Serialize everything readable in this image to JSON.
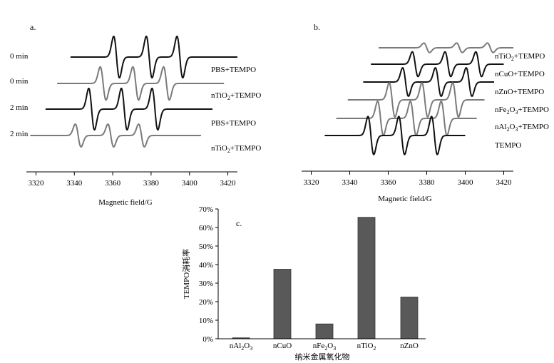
{
  "colors": {
    "dark": "#111111",
    "gray": "#7a7a7a",
    "bar": "#595959"
  },
  "chart_data": [
    {
      "type": "line",
      "panel_label": "a.",
      "xlabel": "Magnetic field/G",
      "x_ticks": [
        3320,
        3340,
        3360,
        3380,
        3400,
        3420
      ],
      "xlim": [
        3315,
        3425
      ],
      "series": [
        {
          "time": "0 min",
          "name": "PBS+TEMPO",
          "color": "dark",
          "start": 3338,
          "end": 3425,
          "peaks": [
            3362,
            3379,
            3395
          ],
          "amp": 1.0
        },
        {
          "time": "0 min",
          "name": "nTiO2+TEMPO",
          "name_main": "nTiO",
          "name_sub": "2",
          "name_tail": "+TEMPO",
          "color": "gray",
          "start": 3331,
          "end": 3418,
          "peaks": [
            3355,
            3372,
            3388
          ],
          "amp": 0.8
        },
        {
          "time": "2 min",
          "name": "PBS+TEMPO",
          "color": "dark",
          "start": 3325,
          "end": 3412,
          "peaks": [
            3349,
            3366,
            3382
          ],
          "amp": 1.0
        },
        {
          "time": "2 min",
          "name": "nTiO2+TEMPO",
          "name_main": "nTiO",
          "name_sub": "2",
          "name_tail": "+TEMPO",
          "color": "gray",
          "start": 3317,
          "end": 3406,
          "peaks": [
            3342,
            3359,
            3375
          ],
          "amp": 0.55
        }
      ]
    },
    {
      "type": "line",
      "panel_label": "b.",
      "xlabel": "Magnetic field/G",
      "x_ticks": [
        3320,
        3340,
        3360,
        3380,
        3400,
        3420
      ],
      "xlim": [
        3315,
        3425
      ],
      "series": [
        {
          "name": "nTiO2+TEMPO",
          "name_main": "nTiO",
          "name_sub": "2",
          "name_tail": "+TEMPO",
          "color": "gray",
          "start": 3355,
          "end": 3425,
          "peaks": [
            3380,
            3397,
            3413
          ],
          "amp": 0.25
        },
        {
          "name": "nCuO+TEMPO",
          "color": "dark",
          "start": 3351,
          "end": 3420,
          "peaks": [
            3374,
            3391,
            3407
          ],
          "amp": 0.65
        },
        {
          "name": "nZnO+TEMPO",
          "color": "dark",
          "start": 3347,
          "end": 3415,
          "peaks": [
            3369,
            3386,
            3402
          ],
          "amp": 0.75
        },
        {
          "name": "nFe2O3+TEMPO",
          "name_main": "nFe",
          "name_sub": "2",
          "name_mid": "O",
          "name_sub2": "3",
          "name_tail": "+TEMPO",
          "color": "gray",
          "start": 3339,
          "end": 3410,
          "peaks": [
            3362,
            3379,
            3395
          ],
          "amp": 0.9
        },
        {
          "name": "nAl2O3+TEMPO",
          "name_main": "nAl",
          "name_sub": "2",
          "name_mid": "O",
          "name_sub2": "3",
          "name_tail": "+TEMPO",
          "color": "gray",
          "start": 3333,
          "end": 3406,
          "peaks": [
            3356,
            3373,
            3389
          ],
          "amp": 0.9
        },
        {
          "name": "TEMPO",
          "color": "dark",
          "start": 3327,
          "end": 3400,
          "peaks": [
            3351,
            3367,
            3384
          ],
          "amp": 1.0
        }
      ]
    },
    {
      "type": "bar",
      "panel_label": "c.",
      "xlabel": "纳米金属氧化物",
      "ylabel": "TEMPO消耗率",
      "ylim": [
        0,
        70
      ],
      "y_ticks": [
        "0%",
        "10%",
        "20%",
        "30%",
        "40%",
        "50%",
        "60%",
        "70%"
      ],
      "categories": [
        "nAl2O3",
        "nCuO",
        "nFe2O3",
        "nTiO2",
        "nZnO"
      ],
      "category_parts": [
        {
          "main": "nAl",
          "sub": "2",
          "mid": "O",
          "sub2": "3"
        },
        {
          "main": "nCuO"
        },
        {
          "main": "nFe",
          "sub": "2",
          "mid": "O",
          "sub2": "3"
        },
        {
          "main": "nTiO",
          "sub": "2"
        },
        {
          "main": "nZnO"
        }
      ],
      "values": [
        0.5,
        37.5,
        8,
        65.5,
        22.5
      ]
    }
  ]
}
